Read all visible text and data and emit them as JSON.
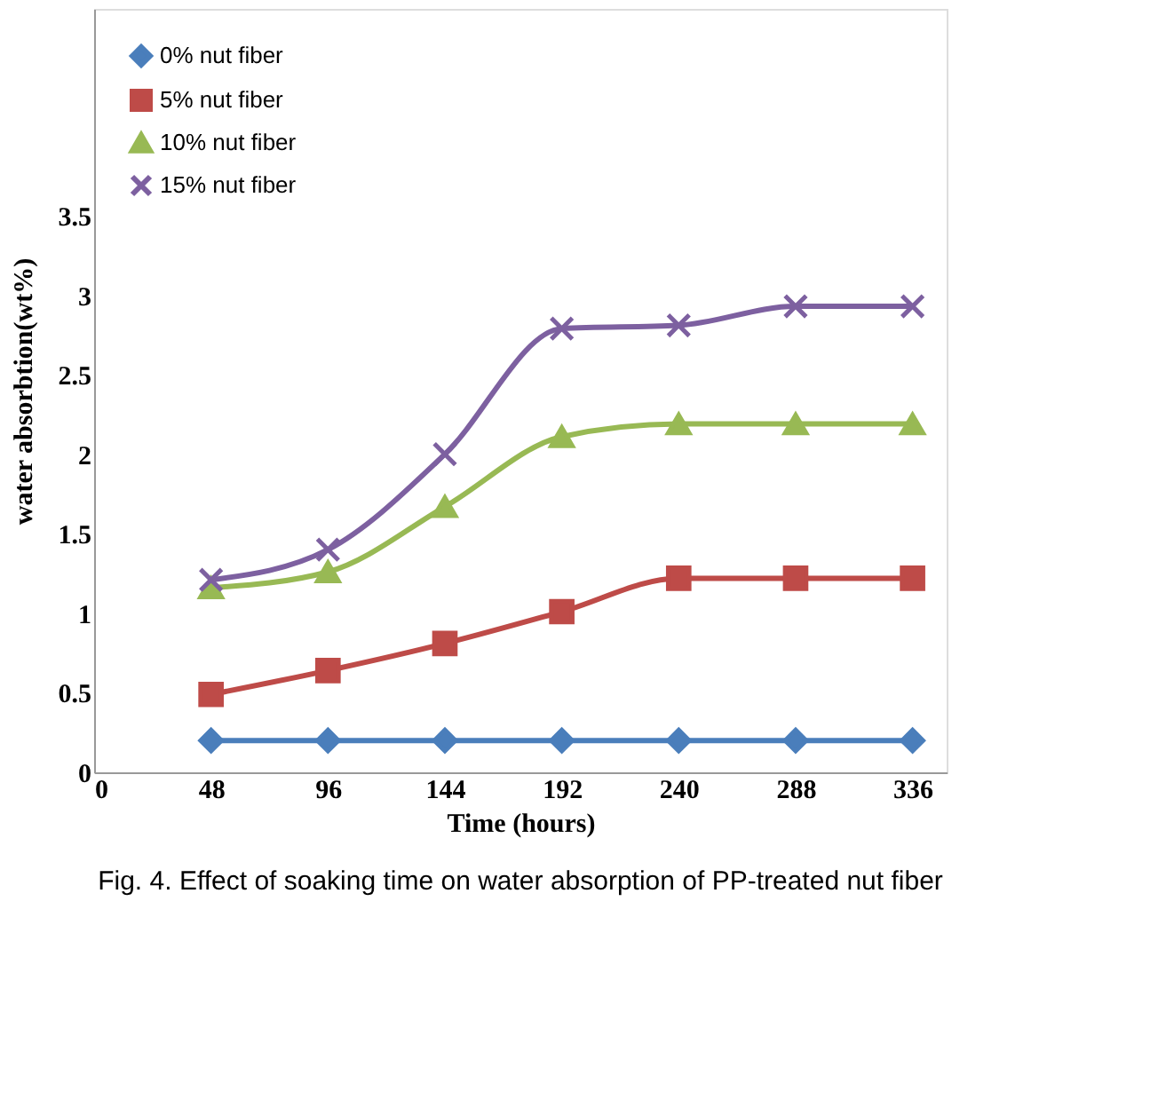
{
  "chart_data": {
    "type": "line",
    "xlabel": "Time (hours)",
    "ylabel": "water absorbtion(wt%)",
    "x": [
      48,
      96,
      144,
      192,
      240,
      288,
      336
    ],
    "xlim": [
      0,
      350
    ],
    "xticks": [
      0,
      48,
      96,
      144,
      192,
      240,
      288,
      336
    ],
    "ylim": [
      0,
      4.8
    ],
    "yticks": [
      0,
      0.5,
      1,
      1.5,
      2,
      2.5,
      3,
      3.5
    ],
    "grid": false,
    "legend": "top left",
    "series": [
      {
        "name": "0% nut fiber",
        "color": "#4a7ebb",
        "marker": "diamond",
        "values": [
          0.2,
          0.2,
          0.2,
          0.2,
          0.2,
          0.2,
          0.2
        ]
      },
      {
        "name": "5% nut fiber",
        "color": "#be4b48",
        "marker": "square",
        "values": [
          0.49,
          0.64,
          0.81,
          1.01,
          1.22,
          1.22,
          1.22
        ]
      },
      {
        "name": "10% nut fiber",
        "color": "#98b954",
        "marker": "triangle",
        "values": [
          1.16,
          1.26,
          1.67,
          2.11,
          2.19,
          2.19,
          2.19
        ]
      },
      {
        "name": "15% nut fiber",
        "color": "#7d60a0",
        "marker": "cross",
        "values": [
          1.21,
          1.4,
          2.0,
          2.79,
          2.81,
          2.93,
          2.93
        ]
      }
    ],
    "annotations": [
      "Fig. 4. Effect of soaking time on water absorption of PP-treated nut fiber"
    ]
  }
}
